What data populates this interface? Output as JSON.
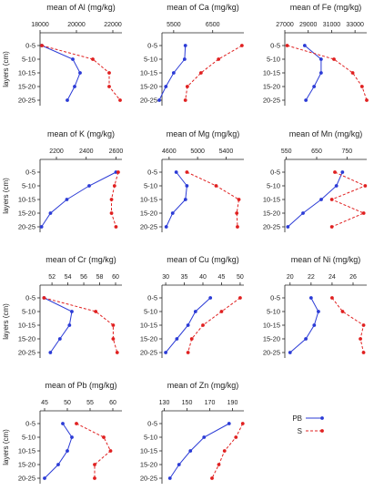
{
  "colors": {
    "pb": "#2b3bd6",
    "s": "#e02020",
    "axis": "#222222"
  },
  "shared": {
    "y_axis_label": "layers (cm)",
    "layers": [
      "0-5",
      "5-10",
      "10-15",
      "15-20",
      "20-25"
    ]
  },
  "legend": {
    "position": "bottom-right",
    "items": [
      {
        "label": "PB",
        "style": "solid",
        "color": "#2b3bd6"
      },
      {
        "label": "S",
        "style": "dashed",
        "color": "#e02020"
      }
    ]
  },
  "chart_data": [
    {
      "type": "line",
      "title": "mean of Al (mg/kg)",
      "categories": [
        "0-5",
        "5-10",
        "10-15",
        "15-20",
        "20-25"
      ],
      "ticks": [
        "18000",
        "20000",
        "22000"
      ],
      "xlim": [
        18000,
        22500
      ],
      "series": [
        {
          "name": "PB",
          "values": [
            18100,
            19800,
            20200,
            19900,
            19500
          ]
        },
        {
          "name": "S",
          "values": [
            18100,
            20900,
            21800,
            21800,
            22400
          ]
        }
      ]
    },
    {
      "type": "line",
      "title": "mean of Ca (mg/kg)",
      "categories": [
        "0-5",
        "5-10",
        "10-15",
        "15-20",
        "20-25"
      ],
      "ticks": [
        "5500",
        "6500"
      ],
      "xlim": [
        5200,
        7300
      ],
      "series": [
        {
          "name": "PB",
          "values": [
            5800,
            5780,
            5500,
            5300,
            5130
          ]
        },
        {
          "name": "S",
          "values": [
            7250,
            6650,
            6200,
            5850,
            5800
          ]
        }
      ]
    },
    {
      "type": "line",
      "title": "mean of Fe (mg/kg)",
      "categories": [
        "0-5",
        "5-10",
        "10-15",
        "15-20",
        "20-25"
      ],
      "ticks": [
        "27000",
        "29000",
        "31000",
        "33000"
      ],
      "xlim": [
        27000,
        34000
      ],
      "series": [
        {
          "name": "PB",
          "values": [
            28700,
            30100,
            30100,
            29500,
            28800
          ]
        },
        {
          "name": "S",
          "values": [
            27200,
            31200,
            32800,
            33600,
            34000
          ]
        }
      ]
    },
    {
      "type": "line",
      "title": "mean of K (mg/kg)",
      "categories": [
        "0-5",
        "5-10",
        "10-15",
        "15-20",
        "20-25"
      ],
      "ticks": [
        "2200",
        "2400",
        "2600"
      ],
      "xlim": [
        2090,
        2640
      ],
      "series": [
        {
          "name": "PB",
          "values": [
            2600,
            2420,
            2270,
            2160,
            2100
          ]
        },
        {
          "name": "S",
          "values": [
            2615,
            2590,
            2570,
            2570,
            2600
          ]
        }
      ]
    },
    {
      "type": "line",
      "title": "mean of Mg (mg/kg)",
      "categories": [
        "0-5",
        "5-10",
        "10-15",
        "15-20",
        "20-25"
      ],
      "ticks": [
        "4600",
        "5000",
        "5400"
      ],
      "xlim": [
        4500,
        5650
      ],
      "series": [
        {
          "name": "PB",
          "values": [
            4700,
            4850,
            4830,
            4650,
            4560
          ]
        },
        {
          "name": "S",
          "values": [
            4850,
            5260,
            5580,
            5550,
            5560
          ]
        }
      ]
    },
    {
      "type": "line",
      "title": "mean of Mn (mg/kg)",
      "categories": [
        "0-5",
        "5-10",
        "10-15",
        "15-20",
        "20-25"
      ],
      "ticks": [
        "550",
        "650",
        "750"
      ],
      "xlim": [
        545,
        815
      ],
      "series": [
        {
          "name": "PB",
          "values": [
            735,
            715,
            665,
            605,
            555
          ]
        },
        {
          "name": "S",
          "values": [
            710,
            810,
            700,
            805,
            700
          ]
        }
      ]
    },
    {
      "type": "line",
      "title": "mean of Cr (mg/kg)",
      "categories": [
        "0-5",
        "5-10",
        "10-15",
        "15-20",
        "20-25"
      ],
      "ticks": [
        "52",
        "54",
        "56",
        "58",
        "60"
      ],
      "xlim": [
        50.5,
        60.8
      ],
      "series": [
        {
          "name": "PB",
          "values": [
            51.0,
            54.5,
            54.2,
            53.0,
            51.8
          ]
        },
        {
          "name": "S",
          "values": [
            51.0,
            57.5,
            59.7,
            59.7,
            60.2
          ]
        }
      ]
    },
    {
      "type": "line",
      "title": "mean of Cu (mg/kg)",
      "categories": [
        "0-5",
        "5-10",
        "10-15",
        "15-20",
        "20-25"
      ],
      "ticks": [
        "30",
        "35",
        "40",
        "45",
        "50"
      ],
      "xlim": [
        29,
        51
      ],
      "series": [
        {
          "name": "PB",
          "values": [
            42,
            38,
            36,
            33,
            30
          ]
        },
        {
          "name": "S",
          "values": [
            50,
            45,
            40,
            37,
            36
          ]
        }
      ]
    },
    {
      "type": "line",
      "title": "mean of Ni (mg/kg)",
      "categories": [
        "0-5",
        "5-10",
        "10-15",
        "15-20",
        "20-25"
      ],
      "ticks": [
        "20",
        "22",
        "24",
        "26"
      ],
      "xlim": [
        19.5,
        27.3
      ],
      "series": [
        {
          "name": "PB",
          "values": [
            22.0,
            22.7,
            22.3,
            21.5,
            20.0
          ]
        },
        {
          "name": "S",
          "values": [
            24.0,
            25.0,
            27.0,
            26.7,
            27.0
          ]
        }
      ]
    },
    {
      "type": "line",
      "title": "mean of Pb (mg/kg)",
      "categories": [
        "0-5",
        "5-10",
        "10-15",
        "15-20",
        "20-25"
      ],
      "ticks": [
        "45",
        "50",
        "55",
        "60"
      ],
      "xlim": [
        44,
        62
      ],
      "series": [
        {
          "name": "PB",
          "values": [
            49.0,
            51.0,
            50.0,
            48.0,
            45.0
          ]
        },
        {
          "name": "S",
          "values": [
            52.0,
            58.0,
            59.5,
            56.0,
            56.0
          ]
        }
      ]
    },
    {
      "type": "line",
      "title": "mean of Zn (mg/kg)",
      "categories": [
        "0-5",
        "5-10",
        "10-15",
        "15-20",
        "20-25"
      ],
      "ticks": [
        "130",
        "150",
        "170",
        "190"
      ],
      "xlim": [
        128,
        200
      ],
      "series": [
        {
          "name": "PB",
          "values": [
            187,
            165,
            153,
            143,
            135
          ]
        },
        {
          "name": "S",
          "values": [
            199,
            193,
            183,
            178,
            172
          ]
        }
      ]
    }
  ]
}
